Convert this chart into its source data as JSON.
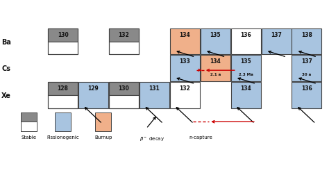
{
  "colors": {
    "stable_top": "#898989",
    "stable_bottom": "#ffffff",
    "fissionogenic": "#a8c4e0",
    "burnup": "#f0b08a",
    "white": "#ffffff",
    "border": "#444444",
    "background": "#ffffff",
    "red": "#cc0000"
  },
  "ba_cells": [
    {
      "mass": "130",
      "col": 1,
      "type": "stable"
    },
    {
      "mass": "132",
      "col": 3,
      "type": "stable"
    },
    {
      "mass": "134",
      "col": 5,
      "type": "burnup"
    },
    {
      "mass": "135",
      "col": 6,
      "type": "fissionogenic"
    },
    {
      "mass": "136",
      "col": 7,
      "type": "white"
    },
    {
      "mass": "137",
      "col": 8,
      "type": "fissionogenic"
    },
    {
      "mass": "138",
      "col": 9,
      "type": "fissionogenic"
    }
  ],
  "cs_cells": [
    {
      "mass": "133",
      "col": 5,
      "type": "fissionogenic",
      "label": ""
    },
    {
      "mass": "134",
      "col": 6,
      "type": "burnup",
      "label": "2.1 a"
    },
    {
      "mass": "135",
      "col": 7,
      "type": "fissionogenic",
      "label": "2.3 Ma"
    },
    {
      "mass": "137",
      "col": 9,
      "type": "fissionogenic",
      "label": "30 a"
    }
  ],
  "xe_cells": [
    {
      "mass": "128",
      "col": 1,
      "type": "stable"
    },
    {
      "mass": "129",
      "col": 2,
      "type": "fissionogenic"
    },
    {
      "mass": "130",
      "col": 3,
      "type": "stable"
    },
    {
      "mass": "131",
      "col": 4,
      "type": "fissionogenic"
    },
    {
      "mass": "132",
      "col": 5,
      "type": "white"
    },
    {
      "mass": "134",
      "col": 7,
      "type": "fissionogenic"
    },
    {
      "mass": "136",
      "col": 9,
      "type": "fissionogenic"
    }
  ],
  "row_labels": [
    {
      "label": "Ba",
      "row": 2
    },
    {
      "label": "Cs",
      "row": 1
    },
    {
      "label": "Xe",
      "row": 0
    }
  ],
  "beta_arrows": [
    {
      "x1c": 2,
      "y1r": -0.7,
      "x2c": 2,
      "y2r": 0.15
    },
    {
      "x1c": 4,
      "y1r": -0.7,
      "x2c": 4,
      "y2r": 0.15
    },
    {
      "x1c": 5,
      "y1r": -0.7,
      "x2c": 5,
      "y2r": 0.15
    },
    {
      "x1c": 5,
      "y1r": 0.85,
      "x2c": 5,
      "y2r": 1.15
    },
    {
      "x1c": 6,
      "y1r": 0.85,
      "x2c": 6,
      "y2r": 1.15
    },
    {
      "x1c": 7,
      "y1r": -0.7,
      "x2c": 7,
      "y2r": 0.15
    },
    {
      "x1c": 7,
      "y1r": 0.85,
      "x2c": 7,
      "y2r": 1.15
    },
    {
      "x1c": 9,
      "y1r": -0.7,
      "x2c": 9,
      "y2r": 0.15
    },
    {
      "x1c": 9,
      "y1r": 0.85,
      "x2c": 9,
      "y2r": 1.15
    },
    {
      "x1c": 9,
      "y1r": 1.85,
      "x2c": 9,
      "y2r": 2.15
    }
  ],
  "legend_items": [
    {
      "type": "stable",
      "label": "Stable",
      "x": 0
    },
    {
      "type": "fissionogenic",
      "label": "Fissionogenic",
      "x": 1
    },
    {
      "type": "burnup",
      "label": "Burnup",
      "x": 2
    },
    {
      "type": "beta_arrow",
      "label": "β⁻ decay",
      "x": 3
    },
    {
      "type": "ncap_arrow",
      "label": "n-capture",
      "x": 4
    }
  ]
}
